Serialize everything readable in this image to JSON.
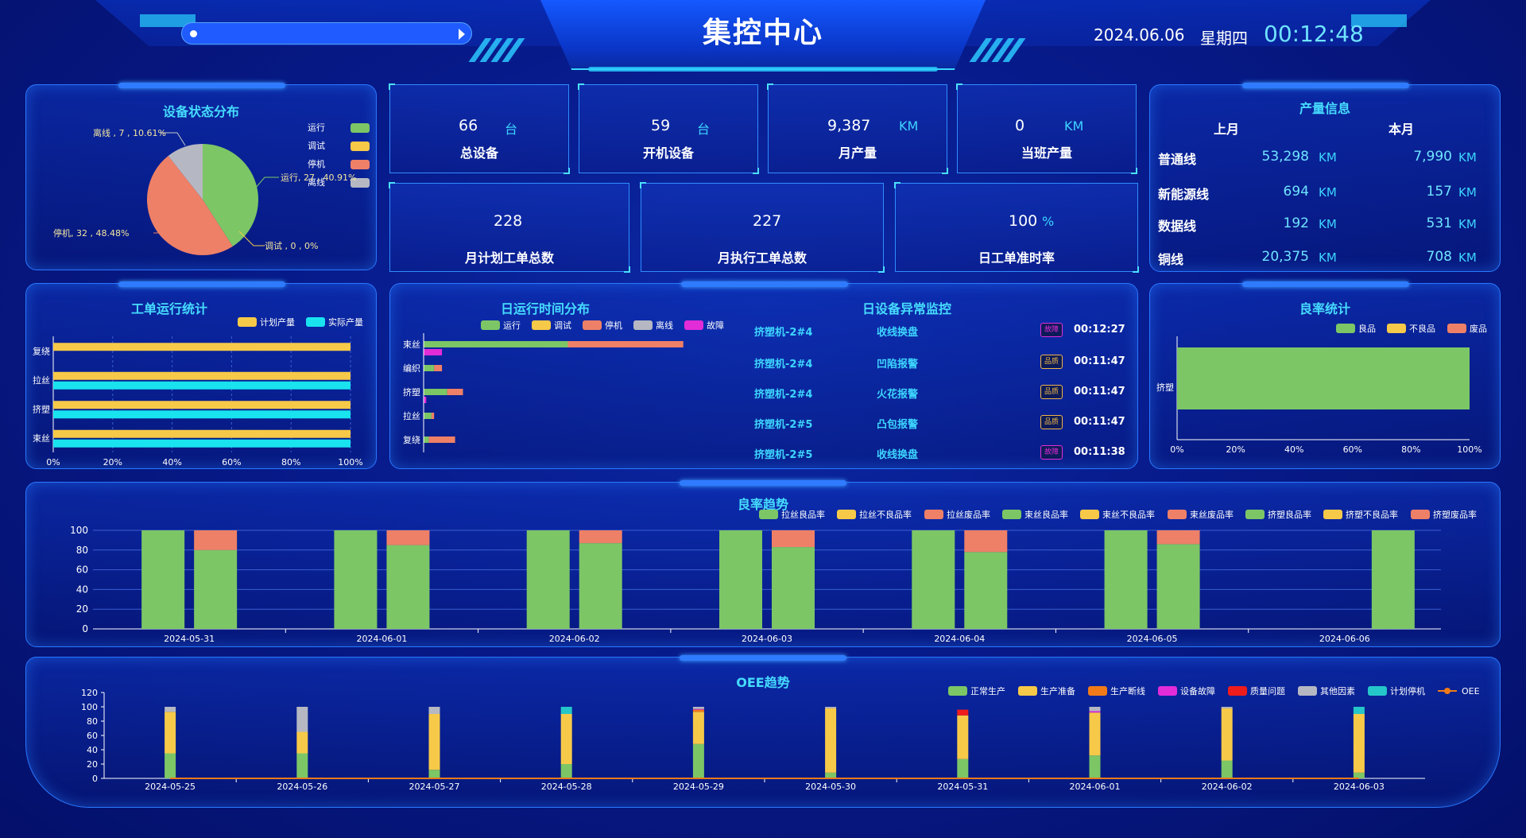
{
  "header": {
    "title": "集控中心",
    "date": "2024.06.06",
    "weekday": "星期四",
    "time": "00:12:48"
  },
  "device_status": {
    "title": "设备状态分布",
    "legend": [
      "运行",
      "调试",
      "停机",
      "离线"
    ],
    "labels": {
      "running": "运行, 27 , 40.91%",
      "debug": "调试 , 0 , 0%",
      "stopped": "停机, 32 , 48.48%",
      "offline": "离线 , 7 , 10.61%"
    },
    "colors": {
      "running": "#7cc666",
      "debug": "#f7c948",
      "stopped": "#ee8067",
      "offline": "#b5b8c2"
    }
  },
  "kpis": {
    "total": {
      "value": "66",
      "unit": "台",
      "label": "总设备"
    },
    "on": {
      "value": "59",
      "unit": "台",
      "label": "开机设备"
    },
    "month_output": {
      "value": "9,387",
      "unit": "KM",
      "label": "月产量"
    },
    "shift_output": {
      "value": "0",
      "unit": "KM",
      "label": "当班产量"
    },
    "plan_orders": {
      "value": "228",
      "label": "月计划工单总数"
    },
    "exec_orders": {
      "value": "227",
      "label": "月执行工单总数"
    },
    "on_time": {
      "value": "100",
      "unit": "%",
      "label": "日工单准时率"
    }
  },
  "production": {
    "title": "产量信息",
    "col_last": "上月",
    "col_this": "本月",
    "unit": "KM",
    "rows": [
      {
        "name": "普通线",
        "last": "53,298",
        "this": "7,990"
      },
      {
        "name": "新能源线",
        "last": "694",
        "this": "157"
      },
      {
        "name": "数据线",
        "last": "192",
        "this": "531"
      },
      {
        "name": "铜线",
        "last": "20,375",
        "this": "708"
      }
    ]
  },
  "work_order": {
    "title": "工单运行统计",
    "legend": [
      "计划产量",
      "实际产量"
    ],
    "categories": [
      "复绕",
      "拉丝",
      "挤塑",
      "束丝"
    ],
    "plan": [
      100,
      100,
      100,
      100
    ],
    "actual": [
      0,
      100,
      100,
      100
    ],
    "ticks": [
      "0%",
      "20%",
      "40%",
      "60%",
      "80%",
      "100%"
    ]
  },
  "daily_runtime": {
    "title": "日运行时间分布",
    "legend": [
      "运行",
      "调试",
      "停机",
      "离线",
      "故障"
    ],
    "categories": [
      "束丝",
      "编织",
      "挤塑",
      "拉丝",
      "复绕"
    ]
  },
  "alarms": {
    "title": "日设备异常监控",
    "rows": [
      {
        "device": "挤塑机-2#4",
        "message": "收线换盘",
        "badge": "故障",
        "badge_color": "#e22cd8",
        "time": "00:12:27"
      },
      {
        "device": "挤塑机-2#4",
        "message": "凹陷报警",
        "badge": "品质",
        "badge_color": "#f0b44a",
        "time": "00:11:47"
      },
      {
        "device": "挤塑机-2#4",
        "message": "火花报警",
        "badge": "品质",
        "badge_color": "#f0b44a",
        "time": "00:11:47"
      },
      {
        "device": "挤塑机-2#5",
        "message": "凸包报警",
        "badge": "品质",
        "badge_color": "#f0b44a",
        "time": "00:11:47"
      },
      {
        "device": "挤塑机-2#5",
        "message": "收线换盘",
        "badge": "故障",
        "badge_color": "#e22cd8",
        "time": "00:11:38"
      }
    ]
  },
  "yield_stats": {
    "title": "良率统计",
    "legend": [
      "良品",
      "不良品",
      "废品"
    ],
    "category": "挤塑",
    "ticks": [
      "0%",
      "20%",
      "40%",
      "60%",
      "80%",
      "100%"
    ]
  },
  "chart_data": [
    {
      "type": "pie",
      "title": "设备状态分布",
      "categories": [
        "运行",
        "调试",
        "停机",
        "离线"
      ],
      "values": [
        27,
        0,
        32,
        7
      ]
    },
    {
      "type": "bar",
      "title": "工单运行统计",
      "orientation": "horizontal",
      "categories": [
        "复绕",
        "拉丝",
        "挤塑",
        "束丝"
      ],
      "series": [
        {
          "name": "计划产量",
          "values": [
            100,
            100,
            100,
            100
          ]
        },
        {
          "name": "实际产量",
          "values": [
            0,
            100,
            100,
            100
          ]
        }
      ],
      "xlim": [
        0,
        100
      ]
    },
    {
      "type": "bar",
      "title": "日运行时间分布",
      "orientation": "horizontal",
      "stacked": true,
      "categories": [
        "束丝",
        "编织",
        "挤塑",
        "拉丝",
        "复绕"
      ],
      "series": [
        {
          "name": "运行",
          "values": [
            55,
            4,
            9,
            3,
            2
          ],
          "color": "#7cc666"
        },
        {
          "name": "调试",
          "values": [
            0,
            0,
            0,
            0,
            0
          ],
          "color": "#f7c948"
        },
        {
          "name": "停机",
          "values": [
            44,
            3,
            6,
            1,
            10
          ],
          "color": "#ee8067"
        },
        {
          "name": "离线",
          "values": [
            0,
            0,
            0,
            0,
            0
          ],
          "color": "#b5b8c2"
        },
        {
          "name": "故障",
          "values": [
            0,
            0,
            0,
            0,
            0
          ],
          "color": "#e22cd8"
        }
      ],
      "sub_series": {
        "name": "故障",
        "values": [
          7,
          0,
          1,
          0,
          0
        ]
      }
    },
    {
      "type": "bar",
      "title": "良率统计",
      "orientation": "horizontal",
      "categories": [
        "挤塑"
      ],
      "series": [
        {
          "name": "良品",
          "values": [
            100
          ]
        },
        {
          "name": "不良品",
          "values": [
            0
          ]
        },
        {
          "name": "废品",
          "values": [
            0
          ]
        }
      ],
      "xlim": [
        0,
        100
      ]
    },
    {
      "type": "bar",
      "title": "良率趋势",
      "stacked": true,
      "categories": [
        "2024-05-31",
        "2024-06-01",
        "2024-06-02",
        "2024-06-03",
        "2024-06-04",
        "2024-06-05",
        "2024-06-06"
      ],
      "legend": [
        "拉丝良品率",
        "拉丝不良品率",
        "拉丝废品率",
        "束丝良品率",
        "束丝不良品率",
        "束丝废品率",
        "挤塑良品率",
        "挤塑不良品率",
        "挤塑废品率"
      ],
      "groups": [
        {
          "good": [
            100,
            100,
            100,
            100,
            100,
            100,
            0
          ],
          "bad": [
            0,
            0,
            0,
            0,
            0,
            0,
            0
          ],
          "scrap": [
            0,
            0,
            0,
            0,
            0,
            0,
            0
          ]
        },
        {
          "good": [
            80,
            85,
            87,
            83,
            78,
            86,
            0
          ],
          "bad": [
            0,
            0,
            0,
            0,
            0,
            0,
            0
          ],
          "scrap": [
            20,
            15,
            13,
            17,
            22,
            14,
            0
          ]
        },
        {
          "good": [
            0,
            0,
            0,
            0,
            0,
            0,
            100
          ],
          "bad": [
            0,
            0,
            0,
            0,
            0,
            0,
            0
          ],
          "scrap": [
            0,
            0,
            0,
            0,
            0,
            0,
            0
          ]
        }
      ],
      "yticks": [
        0,
        20,
        40,
        60,
        80,
        100
      ],
      "ylim": [
        0,
        100
      ]
    },
    {
      "type": "bar",
      "title": "OEE趋势",
      "stacked": true,
      "categories": [
        "2024-05-25",
        "2024-05-26",
        "2024-05-27",
        "2024-05-28",
        "2024-05-29",
        "2024-05-30",
        "2024-05-31",
        "2024-06-01",
        "2024-06-02",
        "2024-06-03"
      ],
      "series": [
        {
          "name": "正常生产",
          "values": [
            35,
            35,
            12,
            20,
            48,
            8,
            27,
            32,
            25,
            8
          ],
          "color": "#7cc666"
        },
        {
          "name": "生产准备",
          "values": [
            58,
            30,
            78,
            70,
            45,
            90,
            61,
            60,
            73,
            82
          ],
          "color": "#f7c948"
        },
        {
          "name": "生产断线",
          "values": [
            0,
            0,
            0,
            0,
            3,
            0,
            0,
            0,
            0,
            0
          ],
          "color": "#f07a18"
        },
        {
          "name": "设备故障",
          "values": [
            0,
            0,
            0,
            0,
            1,
            0,
            0,
            2,
            0,
            0
          ],
          "color": "#e22cd8"
        },
        {
          "name": "质量问题",
          "values": [
            0,
            0,
            0,
            0,
            0,
            0,
            8,
            0,
            0,
            0
          ],
          "color": "#ef1c1c"
        },
        {
          "name": "其他因素",
          "values": [
            7,
            35,
            10,
            0,
            3,
            2,
            0,
            6,
            2,
            0
          ],
          "color": "#b5b8c2"
        },
        {
          "name": "计划停机",
          "values": [
            0,
            0,
            0,
            10,
            0,
            0,
            0,
            0,
            0,
            10
          ],
          "color": "#25c6c9"
        }
      ],
      "line": {
        "name": "OEE",
        "color": "#f07a18",
        "values": [
          0,
          0,
          0,
          0,
          0,
          0,
          0,
          0,
          0,
          0
        ]
      },
      "yticks": [
        0,
        20,
        40,
        60,
        80,
        100,
        120
      ],
      "ylim": [
        0,
        120
      ]
    }
  ],
  "yield_trend": {
    "title": "良率趋势"
  },
  "oee": {
    "title": "OEE趋势"
  }
}
